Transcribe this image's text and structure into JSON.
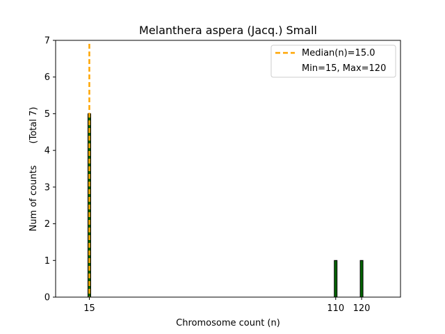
{
  "chart_data": {
    "type": "bar",
    "title": "Melanthera aspera (Jacq.) Small",
    "xlabel": "Chromosome count (n)",
    "ylabel": "Num of counts",
    "ylabel_note": "(Total 7)",
    "x": [
      15,
      110,
      120
    ],
    "values": [
      5,
      1,
      1
    ],
    "xticks": [
      15,
      110,
      120
    ],
    "xlim": [
      2,
      135
    ],
    "ylim": [
      0,
      7
    ],
    "yticks": [
      0,
      1,
      2,
      3,
      4,
      5,
      6,
      7
    ],
    "bar_color": "#006400",
    "bar_edge_color": "#000000",
    "median": 15.0,
    "median_color": "#FFA500",
    "legend": {
      "position": "top-right",
      "entries": [
        "Median(n)=15.0",
        "Min=15, Max=120"
      ]
    }
  }
}
